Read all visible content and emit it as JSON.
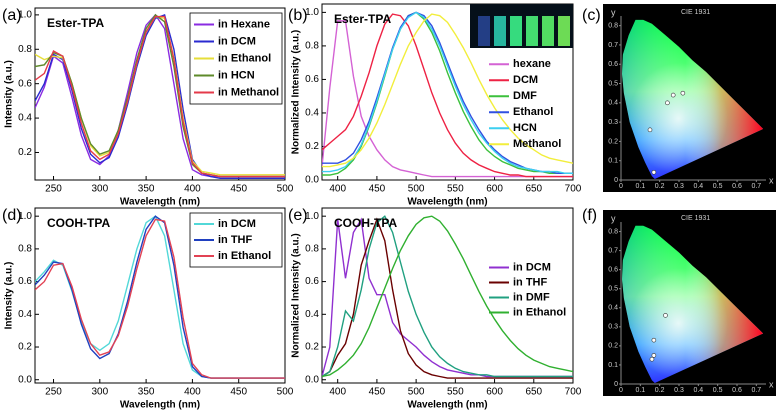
{
  "chart_data": [
    {
      "type": "line",
      "panel": "(a)",
      "annotation": "Ester-TPA",
      "xlabel": "Wavelength (nm)",
      "ylabel": "Intensity (a.u.)",
      "x": [
        230,
        240,
        250,
        260,
        270,
        280,
        290,
        300,
        310,
        320,
        330,
        340,
        350,
        360,
        370,
        380,
        390,
        400,
        410,
        420,
        430,
        440,
        450,
        460,
        470,
        480,
        490,
        500
      ],
      "xlim": [
        230,
        500
      ],
      "xticks": [
        250,
        300,
        350,
        400,
        450,
        500
      ],
      "ylim": [
        0.04,
        1.04
      ],
      "yticks": [
        0.2,
        0.4,
        0.6,
        0.8,
        {
          "value": 1,
          "label": "1.0"
        }
      ],
      "legend": "upper right",
      "legend_frame": true,
      "series": [
        {
          "name": "in Hexane",
          "color": "#8a2be2",
          "values": [
            0.46,
            0.58,
            0.76,
            0.72,
            0.52,
            0.3,
            0.16,
            0.13,
            0.18,
            0.33,
            0.55,
            0.78,
            0.94,
            1.0,
            0.92,
            0.6,
            0.28,
            0.1,
            0.07,
            0.06,
            0.06,
            0.06,
            0.06,
            0.06,
            0.06,
            0.06,
            0.06,
            0.06
          ]
        },
        {
          "name": "in DCM",
          "color": "#2a2ad0",
          "values": [
            0.5,
            0.6,
            0.77,
            0.74,
            0.56,
            0.34,
            0.19,
            0.14,
            0.17,
            0.29,
            0.48,
            0.7,
            0.88,
            0.98,
            1.0,
            0.8,
            0.45,
            0.16,
            0.08,
            0.06,
            0.05,
            0.05,
            0.05,
            0.05,
            0.05,
            0.05,
            0.05,
            0.05
          ]
        },
        {
          "name": "in Ethanol",
          "color": "#e6de3a",
          "values": [
            0.77,
            0.74,
            0.76,
            0.75,
            0.6,
            0.4,
            0.24,
            0.18,
            0.2,
            0.32,
            0.5,
            0.72,
            0.9,
            0.99,
            0.98,
            0.75,
            0.4,
            0.15,
            0.09,
            0.08,
            0.07,
            0.07,
            0.07,
            0.07,
            0.07,
            0.07,
            0.07,
            0.07
          ]
        },
        {
          "name": "in HCN",
          "color": "#5e8a2a",
          "values": [
            0.7,
            0.71,
            0.78,
            0.76,
            0.6,
            0.4,
            0.25,
            0.19,
            0.21,
            0.33,
            0.52,
            0.74,
            0.92,
            1.0,
            0.96,
            0.7,
            0.35,
            0.13,
            0.08,
            0.07,
            0.06,
            0.06,
            0.06,
            0.06,
            0.06,
            0.06,
            0.06,
            0.06
          ]
        },
        {
          "name": "in Methanol",
          "color": "#e43a4a",
          "values": [
            0.62,
            0.66,
            0.79,
            0.76,
            0.58,
            0.37,
            0.21,
            0.16,
            0.19,
            0.31,
            0.5,
            0.72,
            0.9,
            0.99,
            0.99,
            0.74,
            0.38,
            0.14,
            0.08,
            0.07,
            0.06,
            0.06,
            0.06,
            0.06,
            0.06,
            0.06,
            0.06,
            0.06
          ]
        }
      ]
    },
    {
      "type": "line",
      "panel": "(b)",
      "annotation": "Ester-TPA",
      "xlabel": "Wavelength (nm)",
      "ylabel": "Normalized Intensity (a.u.)",
      "x": [
        380,
        390,
        400,
        410,
        420,
        430,
        440,
        450,
        460,
        470,
        480,
        490,
        500,
        510,
        520,
        530,
        540,
        550,
        560,
        570,
        580,
        590,
        600,
        610,
        620,
        630,
        640,
        650,
        660,
        670,
        680,
        690,
        700
      ],
      "xlim": [
        380,
        700
      ],
      "xticks": [
        400,
        450,
        500,
        550,
        600,
        650,
        700
      ],
      "ylim": [
        0,
        1.05
      ],
      "yticks": [
        {
          "value": 0,
          "label": "0.0"
        },
        0.2,
        0.4,
        0.6,
        0.8,
        {
          "value": 1,
          "label": "1.0"
        }
      ],
      "legend": "center right",
      "legend_frame": false,
      "series": [
        {
          "name": "hexane",
          "color": "#d462d4",
          "values": [
            0.08,
            0.55,
            0.95,
            0.95,
            0.62,
            0.38,
            0.26,
            0.18,
            0.12,
            0.08,
            0.06,
            0.05,
            0.04,
            0.03,
            0.02,
            0.02,
            0.02,
            0.02,
            0.02,
            0.02,
            0.02,
            0.02,
            0.02,
            0.02,
            0.02,
            0.02,
            0.02,
            0.02,
            0.02,
            0.02,
            0.02,
            0.02,
            0.02
          ]
        },
        {
          "name": "DCM",
          "color": "#ee2244",
          "values": [
            0.18,
            0.22,
            0.26,
            0.3,
            0.38,
            0.5,
            0.64,
            0.8,
            0.93,
            0.99,
            0.98,
            0.92,
            0.8,
            0.66,
            0.52,
            0.4,
            0.3,
            0.22,
            0.16,
            0.12,
            0.09,
            0.07,
            0.05,
            0.04,
            0.03,
            0.03,
            0.02,
            0.02,
            0.02,
            0.02,
            0.02,
            0.02,
            0.02
          ]
        },
        {
          "name": "DMF",
          "color": "#3cc03c",
          "values": [
            0.03,
            0.03,
            0.04,
            0.07,
            0.12,
            0.2,
            0.32,
            0.46,
            0.62,
            0.78,
            0.9,
            0.98,
            1.0,
            0.96,
            0.88,
            0.77,
            0.64,
            0.52,
            0.41,
            0.32,
            0.24,
            0.18,
            0.14,
            0.11,
            0.09,
            0.07,
            0.06,
            0.05,
            0.05,
            0.04,
            0.04,
            0.04,
            0.04
          ]
        },
        {
          "name": "Ethanol",
          "color": "#3050e0",
          "values": [
            0.1,
            0.1,
            0.1,
            0.12,
            0.16,
            0.24,
            0.35,
            0.49,
            0.64,
            0.79,
            0.91,
            0.98,
            1.0,
            0.98,
            0.92,
            0.82,
            0.7,
            0.58,
            0.47,
            0.38,
            0.3,
            0.23,
            0.18,
            0.14,
            0.11,
            0.09,
            0.07,
            0.06,
            0.05,
            0.05,
            0.04,
            0.04,
            0.04
          ]
        },
        {
          "name": "HCN",
          "color": "#3ccff0",
          "values": [
            0.05,
            0.05,
            0.06,
            0.08,
            0.13,
            0.21,
            0.33,
            0.47,
            0.63,
            0.78,
            0.9,
            0.97,
            1.0,
            0.97,
            0.9,
            0.8,
            0.68,
            0.56,
            0.45,
            0.36,
            0.28,
            0.22,
            0.17,
            0.13,
            0.1,
            0.08,
            0.07,
            0.06,
            0.05,
            0.05,
            0.05,
            0.04,
            0.04
          ]
        },
        {
          "name": "Methanol",
          "color": "#f2ee3c",
          "values": [
            0.08,
            0.08,
            0.09,
            0.1,
            0.13,
            0.18,
            0.25,
            0.34,
            0.45,
            0.57,
            0.69,
            0.8,
            0.88,
            0.95,
            0.99,
            0.98,
            0.94,
            0.87,
            0.79,
            0.7,
            0.6,
            0.51,
            0.43,
            0.36,
            0.3,
            0.25,
            0.21,
            0.18,
            0.15,
            0.13,
            0.12,
            0.11,
            0.1
          ]
        }
      ]
    },
    {
      "type": "cie",
      "panel": "(c)",
      "title": "CIE 1931",
      "xlabel": "x",
      "ylabel": "y",
      "xlim": [
        0,
        0.75
      ],
      "xticks": [
        0,
        0.1,
        0.2,
        0.3,
        0.4,
        0.5,
        0.6,
        0.7
      ],
      "ylim": [
        0,
        0.85
      ],
      "yticks": [
        0,
        0.1,
        0.2,
        0.3,
        0.4,
        0.5,
        0.6,
        0.7,
        0.8
      ],
      "points": {
        "x": [
          0.17,
          0.15,
          0.24,
          0.27,
          0.32
        ],
        "y": [
          0.04,
          0.26,
          0.4,
          0.44,
          0.45
        ]
      }
    },
    {
      "type": "line",
      "panel": "(d)",
      "annotation": "COOH-TPA",
      "xlabel": "Wavelength (nm)",
      "ylabel": "Intensity (a.u.)",
      "x": [
        230,
        240,
        250,
        260,
        270,
        280,
        290,
        300,
        310,
        320,
        330,
        340,
        350,
        360,
        370,
        380,
        390,
        400,
        410,
        420,
        430,
        440,
        450,
        460,
        470,
        480,
        490,
        500
      ],
      "xlim": [
        230,
        500
      ],
      "xticks": [
        250,
        300,
        350,
        400,
        450,
        500
      ],
      "ylim": [
        -0.02,
        1.05
      ],
      "yticks": [
        {
          "value": 0,
          "label": "0.0"
        },
        0.2,
        0.4,
        0.6,
        0.8,
        {
          "value": 1,
          "label": "1.0"
        }
      ],
      "legend": "upper right",
      "legend_frame": true,
      "series": [
        {
          "name": "in DCM",
          "color": "#52d8d8",
          "values": [
            0.6,
            0.66,
            0.73,
            0.7,
            0.54,
            0.35,
            0.22,
            0.18,
            0.22,
            0.36,
            0.58,
            0.8,
            0.96,
            1.0,
            0.88,
            0.55,
            0.22,
            0.06,
            0.02,
            0.01,
            0.01,
            0.01,
            0.01,
            0.01,
            0.01,
            0.01,
            0.01,
            0.01
          ]
        },
        {
          "name": "in THF",
          "color": "#2040c0",
          "values": [
            0.58,
            0.64,
            0.72,
            0.71,
            0.55,
            0.34,
            0.19,
            0.13,
            0.16,
            0.28,
            0.48,
            0.72,
            0.92,
            1.0,
            0.96,
            0.7,
            0.32,
            0.08,
            0.02,
            0.01,
            0.01,
            0.01,
            0.01,
            0.01,
            0.01,
            0.01,
            0.01,
            0.01
          ]
        },
        {
          "name": "in Ethanol",
          "color": "#e24254",
          "values": [
            0.55,
            0.6,
            0.7,
            0.71,
            0.57,
            0.37,
            0.22,
            0.15,
            0.17,
            0.27,
            0.45,
            0.68,
            0.88,
            0.98,
            0.97,
            0.75,
            0.38,
            0.1,
            0.03,
            0.01,
            0.01,
            0.01,
            0.01,
            0.01,
            0.01,
            0.01,
            0.01,
            0.01
          ]
        }
      ]
    },
    {
      "type": "line",
      "panel": "(e)",
      "annotation": "COOH-TPA",
      "xlabel": "Wavelength (nm)",
      "ylabel": "Normalized Intensity (a.u.)",
      "x": [
        380,
        390,
        400,
        410,
        420,
        430,
        440,
        450,
        460,
        470,
        480,
        490,
        500,
        510,
        520,
        530,
        540,
        550,
        560,
        570,
        580,
        590,
        600,
        610,
        620,
        630,
        640,
        650,
        660,
        670,
        680,
        690,
        700
      ],
      "xlim": [
        380,
        700
      ],
      "xticks": [
        400,
        450,
        500,
        550,
        600,
        650,
        700
      ],
      "ylim": [
        -0.02,
        1.05
      ],
      "yticks": [
        {
          "value": 0,
          "label": "0.0"
        },
        0.2,
        0.4,
        0.6,
        0.8,
        {
          "value": 1,
          "label": "1.0"
        }
      ],
      "legend": "center right",
      "legend_frame": false,
      "series": [
        {
          "name": "in DCM",
          "color": "#9030d0",
          "values": [
            0.02,
            0.2,
            0.98,
            0.62,
            0.9,
            0.98,
            0.62,
            0.52,
            0.52,
            0.35,
            0.28,
            0.24,
            0.2,
            0.15,
            0.11,
            0.08,
            0.06,
            0.05,
            0.04,
            0.03,
            0.03,
            0.02,
            0.02,
            0.02,
            0.02,
            0.02,
            0.02,
            0.02,
            0.02,
            0.02,
            0.02,
            0.02,
            0.02
          ]
        },
        {
          "name": "in THF",
          "color": "#6a0000",
          "values": [
            0.02,
            0.05,
            0.15,
            0.22,
            0.4,
            0.7,
            0.85,
            0.98,
            0.85,
            0.55,
            0.3,
            0.16,
            0.09,
            0.05,
            0.03,
            0.02,
            0.01,
            0.01,
            0.01,
            0.01,
            0.01,
            0.01,
            0.01,
            0.01,
            0.01,
            0.01,
            0.01,
            0.01,
            0.01,
            0.01,
            0.01,
            0.01,
            0.01
          ]
        },
        {
          "name": "in DMF",
          "color": "#20a080",
          "values": [
            0.02,
            0.05,
            0.2,
            0.42,
            0.36,
            0.55,
            0.8,
            0.96,
            1.0,
            0.9,
            0.72,
            0.54,
            0.4,
            0.29,
            0.2,
            0.14,
            0.1,
            0.07,
            0.05,
            0.04,
            0.03,
            0.03,
            0.02,
            0.02,
            0.02,
            0.02,
            0.02,
            0.02,
            0.02,
            0.02,
            0.02,
            0.02,
            0.02
          ]
        },
        {
          "name": "in Ethanol",
          "color": "#30b030",
          "values": [
            0.02,
            0.03,
            0.06,
            0.1,
            0.15,
            0.22,
            0.32,
            0.44,
            0.56,
            0.68,
            0.79,
            0.88,
            0.95,
            0.99,
            1.0,
            0.97,
            0.91,
            0.83,
            0.74,
            0.64,
            0.54,
            0.45,
            0.37,
            0.3,
            0.24,
            0.19,
            0.15,
            0.12,
            0.1,
            0.08,
            0.07,
            0.06,
            0.05
          ]
        }
      ]
    },
    {
      "type": "cie",
      "panel": "(f)",
      "title": "CIE 1931",
      "xlabel": "x",
      "ylabel": "y",
      "xlim": [
        0,
        0.75
      ],
      "xticks": [
        0,
        0.1,
        0.2,
        0.3,
        0.4,
        0.5,
        0.6,
        0.7
      ],
      "ylim": [
        0,
        0.85
      ],
      "yticks": [
        0,
        0.1,
        0.2,
        0.3,
        0.4,
        0.5,
        0.6,
        0.7,
        0.8
      ],
      "points": {
        "x": [
          0.16,
          0.17,
          0.17,
          0.23
        ],
        "y": [
          0.13,
          0.15,
          0.23,
          0.36
        ]
      }
    }
  ]
}
